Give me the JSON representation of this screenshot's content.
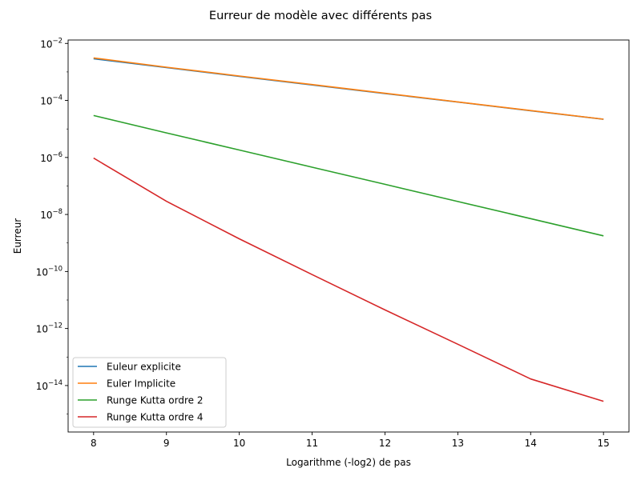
{
  "chart_data": {
    "type": "line",
    "title": "Eurreur de modèle avec différents pas",
    "xlabel": "Logarithme (-log2) de pas",
    "ylabel": "Eurreur",
    "yscale": "log",
    "xlim": [
      7.65,
      15.35
    ],
    "ylim_log10": [
      -15.63,
      -1.88
    ],
    "x_ticks": [
      "8",
      "9",
      "10",
      "11",
      "12",
      "13",
      "14",
      "15"
    ],
    "y_ticks": [
      {
        "exp": -2,
        "base": "10",
        "power": "−2"
      },
      {
        "exp": -4,
        "base": "10",
        "power": "−4"
      },
      {
        "exp": -6,
        "base": "10",
        "power": "−6"
      },
      {
        "exp": -8,
        "base": "10",
        "power": "−8"
      },
      {
        "exp": -10,
        "base": "10",
        "power": "−10"
      },
      {
        "exp": -12,
        "base": "10",
        "power": "−12"
      },
      {
        "exp": -14,
        "base": "10",
        "power": "−14"
      }
    ],
    "legend_position": "lower-left",
    "grid": false,
    "x": [
      8,
      9,
      10,
      11,
      12,
      13,
      14,
      15
    ],
    "series": [
      {
        "name": "Euleur explicite",
        "color": "#1f77b4",
        "values": [
          0.0029,
          0.00142,
          0.0007,
          0.00035,
          0.000175,
          8.75e-05,
          4.37e-05,
          2.19e-05
        ]
      },
      {
        "name": "Euler Implicite",
        "color": "#ff7f0e",
        "values": [
          0.0031,
          0.00147,
          0.00072,
          0.00036,
          0.000178,
          8.85e-05,
          4.41e-05,
          2.2e-05
        ]
      },
      {
        "name": "Runge Kutta ordre 2",
        "color": "#2ca02c",
        "values": [
          2.95e-05,
          7.3e-06,
          1.83e-06,
          4.56e-07,
          1.14e-07,
          2.85e-08,
          7.14e-09,
          1.78e-09
        ]
      },
      {
        "name": "Runge Kutta ordre 4",
        "color": "#d62728",
        "values": [
          9.5e-07,
          2.9e-08,
          1.4e-09,
          7.8e-11,
          4.5e-12,
          2.8e-13,
          1.7e-14,
          2.8e-15
        ]
      }
    ]
  }
}
